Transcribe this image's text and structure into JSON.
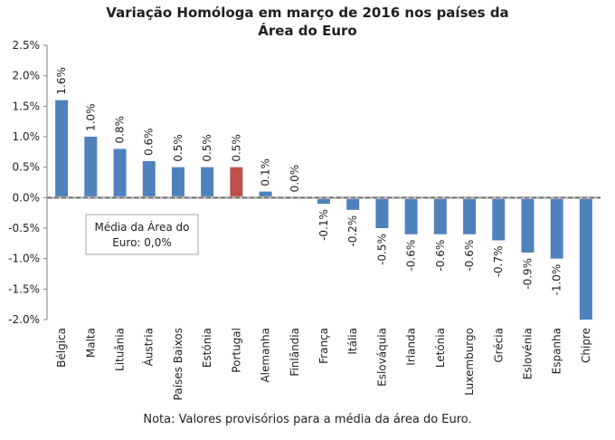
{
  "chart_data": {
    "type": "bar",
    "title": "Variação Homóloga em março de 2016 nos países da Área do Euro",
    "title_lines": [
      "Variação Homóloga em março de 2016 nos países da",
      "Área do Euro"
    ],
    "ylim": [
      -2.0,
      2.5
    ],
    "yticks": [
      "2.5%",
      "2.0%",
      "1.5%",
      "1.0%",
      "0.5%",
      "0.0%",
      "-0.5%",
      "-1.0%",
      "-1.5%",
      "-2.0%"
    ],
    "ytick_values": [
      2.5,
      2.0,
      1.5,
      1.0,
      0.5,
      0.0,
      -0.5,
      -1.0,
      -1.5,
      -2.0
    ],
    "categories": [
      "Bélgica",
      "Malta",
      "Lituânia",
      "Áustria",
      "Países Baixos",
      "Estónia",
      "Portugal",
      "Alemanha",
      "Finlândia",
      "França",
      "Itália",
      "Eslováquia",
      "Irlanda",
      "Letónia",
      "Luxemburgo",
      "Grécia",
      "Eslovénia",
      "Espanha",
      "Chipre"
    ],
    "values": [
      1.6,
      1.0,
      0.8,
      0.6,
      0.5,
      0.5,
      0.5,
      0.1,
      0.0,
      -0.1,
      -0.2,
      -0.5,
      -0.6,
      -0.6,
      -0.6,
      -0.7,
      -0.9,
      -1.0,
      -2.0
    ],
    "data_labels": [
      "1.6%",
      "1.0%",
      "0.8%",
      "0.6%",
      "0.5%",
      "0.5%",
      "0.5%",
      "0.1%",
      "0.0%",
      "-0.1%",
      "-0.2%",
      "-0.5%",
      "-0.6%",
      "-0.6%",
      "-0.6%",
      "-0.7%",
      "-0.9%",
      "-1.0%",
      ""
    ],
    "highlight_category": "Portugal",
    "colors": {
      "bar": "#4f81bd",
      "highlight": "#c0504d",
      "average_line": "#8c8c8c"
    },
    "average": {
      "value": 0.0,
      "label_lines": [
        "Média da Área do",
        "Euro: 0,0%"
      ]
    },
    "note": "Nota: Valores provisórios para a média da área do Euro."
  }
}
